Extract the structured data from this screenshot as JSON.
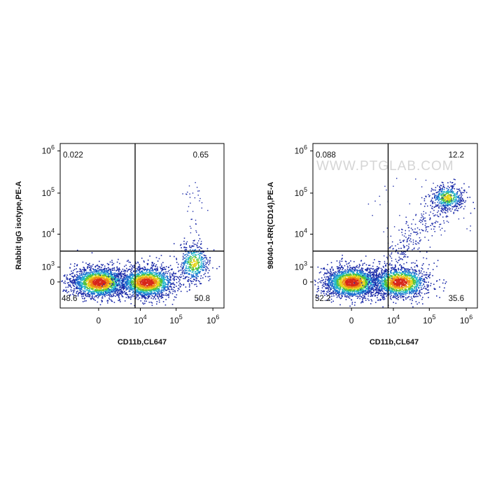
{
  "watermark": "WWW.PTGLAB.COM",
  "chart_data": [
    {
      "type": "scatter",
      "subtype": "flow-cytometry-density-dot-plot",
      "xlabel": "CD11b,CL647",
      "ylabel": "Rabbit IgG isotype,PE-A",
      "x_scale": "biexponential",
      "y_scale": "biexponential",
      "x_ticks": [
        "0",
        "10^4",
        "10^5",
        "10^6"
      ],
      "y_ticks": [
        "0",
        "10^3",
        "10^4",
        "10^5",
        "10^6"
      ],
      "quadrant_gate": {
        "x": 7000,
        "y": 3500
      },
      "quadrants": {
        "top_left": "0.022",
        "top_right": "0.65",
        "bottom_left": "48.6",
        "bottom_right": "50.8"
      },
      "populations": [
        {
          "x": 0,
          "y": 0,
          "weight": 0.45
        },
        {
          "x": 15000,
          "y": 0,
          "weight": 0.43
        },
        {
          "x": 300000,
          "y": 1500,
          "weight": 0.11
        }
      ]
    },
    {
      "type": "scatter",
      "subtype": "flow-cytometry-density-dot-plot",
      "xlabel": "CD11b,CL647",
      "ylabel": "98040-1-RR(CD14),PE-A",
      "x_scale": "biexponential",
      "y_scale": "biexponential",
      "x_ticks": [
        "0",
        "10^4",
        "10^5",
        "10^6"
      ],
      "y_ticks": [
        "0",
        "10^3",
        "10^4",
        "10^5",
        "10^6"
      ],
      "quadrant_gate": {
        "x": 7000,
        "y": 3500
      },
      "quadrants": {
        "top_left": "0.088",
        "top_right": "12.2",
        "bottom_left": "52.2",
        "bottom_right": "35.6"
      },
      "populations": [
        {
          "x": 0,
          "y": 0,
          "weight": 0.5
        },
        {
          "x": 15000,
          "y": 0,
          "weight": 0.36
        },
        {
          "x": 300000,
          "y": 80000,
          "weight": 0.12
        }
      ]
    }
  ]
}
